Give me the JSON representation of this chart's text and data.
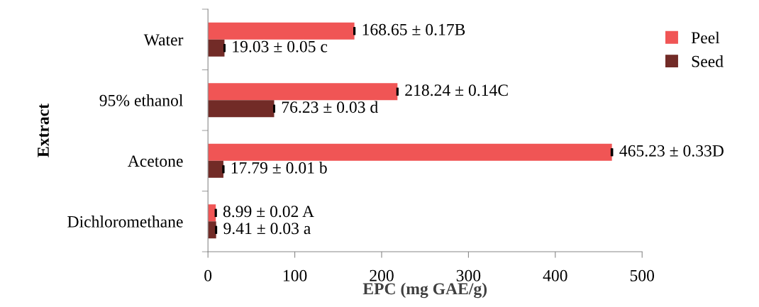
{
  "chart_data": {
    "type": "bar",
    "orientation": "horizontal",
    "xlabel": "EPC (mg GAE/g)",
    "ylabel": "Extract",
    "categories": [
      "Water",
      "95% ethanol",
      "Acetone",
      "Dichloromethane"
    ],
    "series": [
      {
        "name": "Peel",
        "color": "#f05555",
        "values": [
          168.65,
          218.24,
          465.23,
          8.99
        ],
        "errors": [
          0.17,
          0.14,
          0.33,
          0.02
        ],
        "value_labels": [
          "168.65 ± 0.17B",
          "218.24 ± 0.14C",
          "465.23 ± 0.33D",
          "8.99 ± 0.02 A"
        ]
      },
      {
        "name": "Seed",
        "color": "#722b27",
        "values": [
          19.03,
          76.23,
          17.79,
          9.41
        ],
        "errors": [
          0.05,
          0.03,
          0.01,
          0.03
        ],
        "value_labels": [
          "19.03 ± 0.05 c",
          "76.23 ± 0.03 d",
          "17.79 ± 0.01 b",
          "9.41 ± 0.03 a"
        ]
      }
    ],
    "xlim": [
      0,
      500
    ],
    "xticks": [
      0,
      100,
      200,
      300,
      400,
      500
    ],
    "grid": false,
    "legend": "right"
  }
}
